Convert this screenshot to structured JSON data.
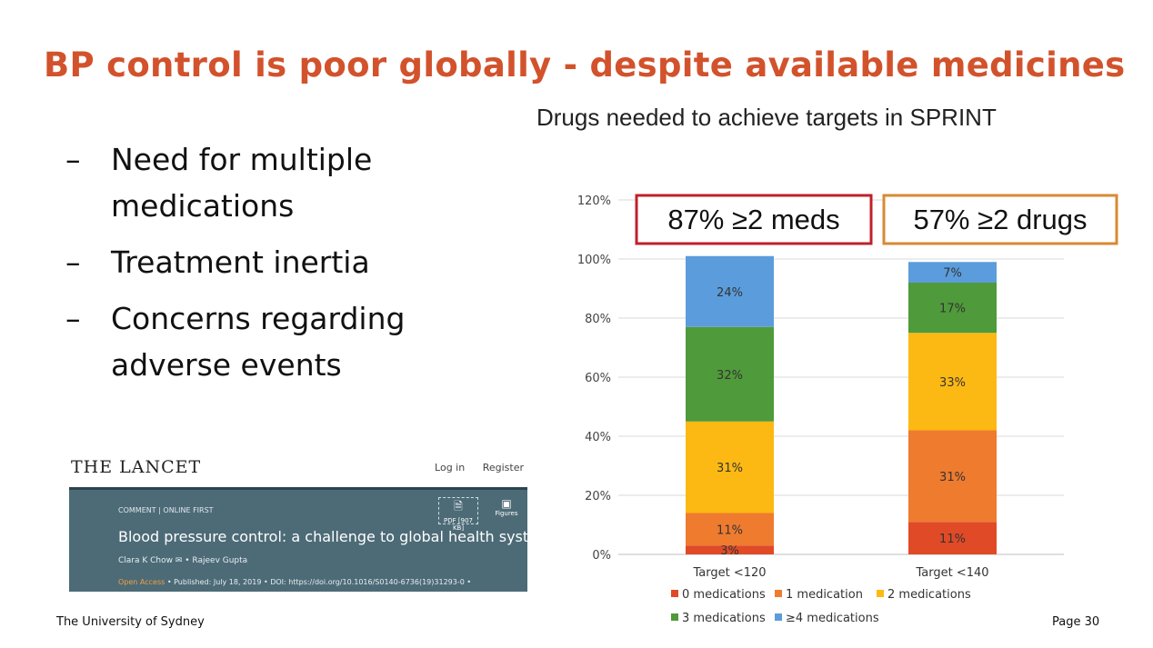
{
  "slide": {
    "title": "BP control is poor globally - despite available medicines",
    "bullets": [
      {
        "dash": "–",
        "text": "Need for multiple medications"
      },
      {
        "dash": "–",
        "text": "Treatment inertia"
      },
      {
        "dash": "–",
        "text": "Concerns regarding adverse events"
      }
    ],
    "footer_left": "The University of Sydney",
    "footer_right": "Page 30"
  },
  "lancet": {
    "logo": "THE LANCET",
    "login": "Log in",
    "register": "Register",
    "comment_tag": "COMMENT | ONLINE FIRST",
    "headline": "Blood pressure control: a challenge to global health systems",
    "authors": "Clara K Chow  ✉ • Rajeev Gupta",
    "open_access": "Open Access",
    "publication": "• Published: July 18, 2019 • DOI: https://doi.org/10.1016/S0140-6736(19)31293-0 •",
    "pdf_label": "PDF [907 KB]",
    "figures_label": "Figures"
  },
  "chart_data": {
    "type": "bar",
    "stacked": true,
    "title": "Drugs needed to achieve targets in SPRINT",
    "categories": [
      "Target <120",
      "Target <140"
    ],
    "ylim": [
      0,
      120
    ],
    "yticks": [
      "0%",
      "20%",
      "40%",
      "60%",
      "80%",
      "100%",
      "120%"
    ],
    "grid": true,
    "legend_position": "bottom",
    "series": [
      {
        "name": "0 medications",
        "values": [
          3,
          11
        ],
        "labels": [
          "3%",
          "11%"
        ],
        "color": "#e04a26"
      },
      {
        "name": "1 medication",
        "values": [
          11,
          31
        ],
        "labels": [
          "11%",
          "31%"
        ],
        "color": "#ef7b2f"
      },
      {
        "name": "2 medications",
        "values": [
          31,
          33
        ],
        "labels": [
          "31%",
          "33%"
        ],
        "color": "#fdb913"
      },
      {
        "name": "3 medications",
        "values": [
          32,
          17
        ],
        "labels": [
          "32%",
          "17%"
        ],
        "color": "#4f9a3a"
      },
      {
        "name": "≥4 medications",
        "values": [
          24,
          7
        ],
        "labels": [
          "24%",
          "7%"
        ],
        "color": "#5b9ddc"
      }
    ],
    "annotations": [
      {
        "text": "87% ≥2 meds",
        "border_color": "#c0202a"
      },
      {
        "text": "57% ≥2 drugs",
        "border_color": "#d88a34"
      }
    ]
  }
}
